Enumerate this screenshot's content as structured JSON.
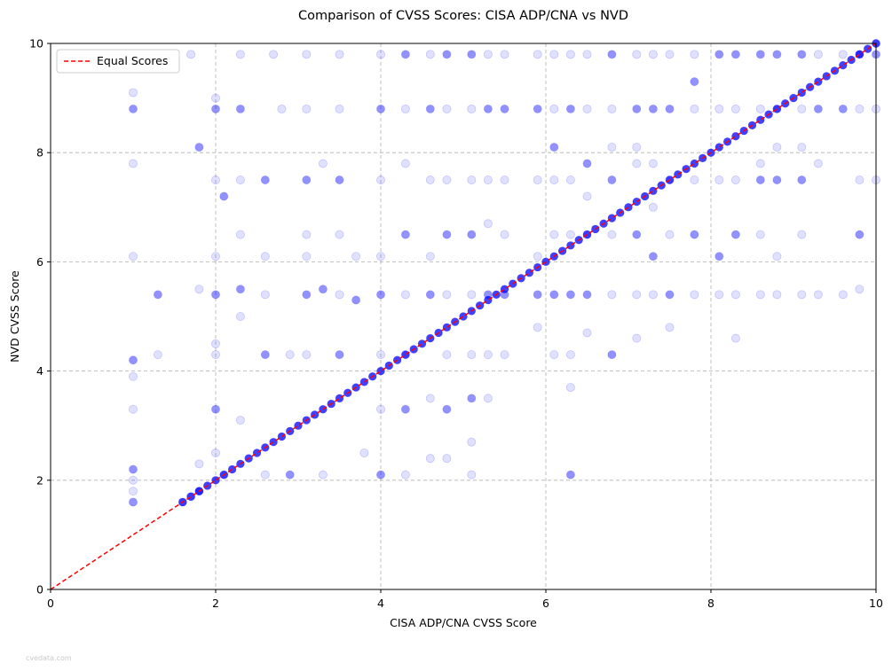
{
  "chart_data": {
    "type": "scatter",
    "title": "Comparison of CVSS Scores: CISA ADP/CNA vs NVD",
    "xlabel": "CISA ADP/CNA CVSS Score",
    "ylabel": "NVD CVSS Score",
    "xlim": [
      0,
      10
    ],
    "ylim": [
      0,
      10
    ],
    "xticks": [
      0,
      2,
      4,
      6,
      8,
      10
    ],
    "yticks": [
      0,
      2,
      4,
      6,
      8,
      10
    ],
    "grid": true,
    "legend_position": "top-left",
    "series": [
      {
        "name": "",
        "color": "#0000ff",
        "opacity": 0.1,
        "note_points": "dense scatter of CVE score pairs",
        "points": [
          [
            1.0,
            1.6
          ],
          [
            1.0,
            1.8
          ],
          [
            1.0,
            2.0
          ],
          [
            1.0,
            2.2
          ],
          [
            1.0,
            3.3
          ],
          [
            1.0,
            3.9
          ],
          [
            1.0,
            4.2
          ],
          [
            1.0,
            6.1
          ],
          [
            1.0,
            7.8
          ],
          [
            1.0,
            8.8
          ],
          [
            1.0,
            9.1
          ],
          [
            1.3,
            4.3
          ],
          [
            1.3,
            5.4
          ],
          [
            1.6,
            1.6
          ],
          [
            1.7,
            1.7
          ],
          [
            1.8,
            1.8
          ],
          [
            1.8,
            2.3
          ],
          [
            1.8,
            5.5
          ],
          [
            1.8,
            8.1
          ],
          [
            1.7,
            9.8
          ],
          [
            2.0,
            2.5
          ],
          [
            2.0,
            3.3
          ],
          [
            2.0,
            4.3
          ],
          [
            2.0,
            4.5
          ],
          [
            2.0,
            5.4
          ],
          [
            2.0,
            6.1
          ],
          [
            2.0,
            7.5
          ],
          [
            2.0,
            8.8
          ],
          [
            2.0,
            9.0
          ],
          [
            2.1,
            2.1
          ],
          [
            2.1,
            7.2
          ],
          [
            2.3,
            3.1
          ],
          [
            2.3,
            5.0
          ],
          [
            2.3,
            5.5
          ],
          [
            2.3,
            6.5
          ],
          [
            2.3,
            7.5
          ],
          [
            2.3,
            8.8
          ],
          [
            2.3,
            9.8
          ],
          [
            2.6,
            2.1
          ],
          [
            2.6,
            4.3
          ],
          [
            2.6,
            5.4
          ],
          [
            2.6,
            6.1
          ],
          [
            2.6,
            7.5
          ],
          [
            2.7,
            9.8
          ],
          [
            2.8,
            8.8
          ],
          [
            2.9,
            2.1
          ],
          [
            2.9,
            4.3
          ],
          [
            3.1,
            4.3
          ],
          [
            3.1,
            5.4
          ],
          [
            3.1,
            6.1
          ],
          [
            3.1,
            6.5
          ],
          [
            3.1,
            7.5
          ],
          [
            3.1,
            8.8
          ],
          [
            3.1,
            9.8
          ],
          [
            3.3,
            5.5
          ],
          [
            3.3,
            7.8
          ],
          [
            3.3,
            2.1
          ],
          [
            3.5,
            4.3
          ],
          [
            3.5,
            5.4
          ],
          [
            3.5,
            6.5
          ],
          [
            3.5,
            7.5
          ],
          [
            3.5,
            8.8
          ],
          [
            3.5,
            9.8
          ],
          [
            3.7,
            5.3
          ],
          [
            3.7,
            6.1
          ],
          [
            3.8,
            2.5
          ],
          [
            4.0,
            2.1
          ],
          [
            4.0,
            3.3
          ],
          [
            4.0,
            4.3
          ],
          [
            4.0,
            5.4
          ],
          [
            4.0,
            6.1
          ],
          [
            4.0,
            7.5
          ],
          [
            4.0,
            8.8
          ],
          [
            4.0,
            9.8
          ],
          [
            4.3,
            2.1
          ],
          [
            4.3,
            3.3
          ],
          [
            4.3,
            4.3
          ],
          [
            4.3,
            5.4
          ],
          [
            4.3,
            6.5
          ],
          [
            4.3,
            7.8
          ],
          [
            4.3,
            8.8
          ],
          [
            4.3,
            9.8
          ],
          [
            4.6,
            2.4
          ],
          [
            4.6,
            3.5
          ],
          [
            4.6,
            5.4
          ],
          [
            4.6,
            6.1
          ],
          [
            4.6,
            7.5
          ],
          [
            4.6,
            8.8
          ],
          [
            4.6,
            9.8
          ],
          [
            4.8,
            2.4
          ],
          [
            4.8,
            3.3
          ],
          [
            4.8,
            4.3
          ],
          [
            4.8,
            5.4
          ],
          [
            4.8,
            6.5
          ],
          [
            4.8,
            7.5
          ],
          [
            4.8,
            8.8
          ],
          [
            4.8,
            9.8
          ],
          [
            5.1,
            2.1
          ],
          [
            5.1,
            2.7
          ],
          [
            5.1,
            3.5
          ],
          [
            5.1,
            4.3
          ],
          [
            5.1,
            5.4
          ],
          [
            5.1,
            6.5
          ],
          [
            5.1,
            7.5
          ],
          [
            5.1,
            8.8
          ],
          [
            5.1,
            9.8
          ],
          [
            5.3,
            3.5
          ],
          [
            5.3,
            4.3
          ],
          [
            5.3,
            5.4
          ],
          [
            5.3,
            6.7
          ],
          [
            5.3,
            7.5
          ],
          [
            5.3,
            8.8
          ],
          [
            5.3,
            9.8
          ],
          [
            5.5,
            4.3
          ],
          [
            5.5,
            5.4
          ],
          [
            5.5,
            6.5
          ],
          [
            5.5,
            7.5
          ],
          [
            5.5,
            8.8
          ],
          [
            5.5,
            9.8
          ],
          [
            5.9,
            4.8
          ],
          [
            5.9,
            5.4
          ],
          [
            5.9,
            6.1
          ],
          [
            5.9,
            7.5
          ],
          [
            5.9,
            8.8
          ],
          [
            5.9,
            9.8
          ],
          [
            6.1,
            4.3
          ],
          [
            6.1,
            5.4
          ],
          [
            6.1,
            6.5
          ],
          [
            6.1,
            7.5
          ],
          [
            6.1,
            8.1
          ],
          [
            6.1,
            8.8
          ],
          [
            6.1,
            9.8
          ],
          [
            6.3,
            2.1
          ],
          [
            6.3,
            3.7
          ],
          [
            6.3,
            4.3
          ],
          [
            6.3,
            5.4
          ],
          [
            6.3,
            6.5
          ],
          [
            6.3,
            7.5
          ],
          [
            6.3,
            8.8
          ],
          [
            6.3,
            9.8
          ],
          [
            6.5,
            4.7
          ],
          [
            6.5,
            5.4
          ],
          [
            6.5,
            6.5
          ],
          [
            6.5,
            7.2
          ],
          [
            6.5,
            7.8
          ],
          [
            6.5,
            8.8
          ],
          [
            6.5,
            9.8
          ],
          [
            6.8,
            4.3
          ],
          [
            6.8,
            5.4
          ],
          [
            6.8,
            6.5
          ],
          [
            6.8,
            7.5
          ],
          [
            6.8,
            8.1
          ],
          [
            6.8,
            8.8
          ],
          [
            6.8,
            9.8
          ],
          [
            7.1,
            4.6
          ],
          [
            7.1,
            5.4
          ],
          [
            7.1,
            6.5
          ],
          [
            7.1,
            7.8
          ],
          [
            7.1,
            8.1
          ],
          [
            7.1,
            8.8
          ],
          [
            7.1,
            9.8
          ],
          [
            7.3,
            5.4
          ],
          [
            7.3,
            6.1
          ],
          [
            7.3,
            7.0
          ],
          [
            7.3,
            7.8
          ],
          [
            7.3,
            8.8
          ],
          [
            7.3,
            9.8
          ],
          [
            7.5,
            4.8
          ],
          [
            7.5,
            5.4
          ],
          [
            7.5,
            6.5
          ],
          [
            7.5,
            7.5
          ],
          [
            7.5,
            8.8
          ],
          [
            7.5,
            9.8
          ],
          [
            7.8,
            5.4
          ],
          [
            7.8,
            6.5
          ],
          [
            7.8,
            7.5
          ],
          [
            7.8,
            8.8
          ],
          [
            7.8,
            9.3
          ],
          [
            7.8,
            9.8
          ],
          [
            8.1,
            5.4
          ],
          [
            8.1,
            6.1
          ],
          [
            8.1,
            7.5
          ],
          [
            8.1,
            8.8
          ],
          [
            8.1,
            9.8
          ],
          [
            8.3,
            4.6
          ],
          [
            8.3,
            5.4
          ],
          [
            8.3,
            6.5
          ],
          [
            8.3,
            7.5
          ],
          [
            8.3,
            8.8
          ],
          [
            8.3,
            9.8
          ],
          [
            8.6,
            5.4
          ],
          [
            8.6,
            6.5
          ],
          [
            8.6,
            7.5
          ],
          [
            8.6,
            7.8
          ],
          [
            8.6,
            8.8
          ],
          [
            8.6,
            9.8
          ],
          [
            8.8,
            5.4
          ],
          [
            8.8,
            6.1
          ],
          [
            8.8,
            7.5
          ],
          [
            8.8,
            8.1
          ],
          [
            8.8,
            8.8
          ],
          [
            8.8,
            9.8
          ],
          [
            9.1,
            5.4
          ],
          [
            9.1,
            6.5
          ],
          [
            9.1,
            7.5
          ],
          [
            9.1,
            8.1
          ],
          [
            9.1,
            8.8
          ],
          [
            9.1,
            9.8
          ],
          [
            9.3,
            5.4
          ],
          [
            9.3,
            7.8
          ],
          [
            9.3,
            8.8
          ],
          [
            9.3,
            9.8
          ],
          [
            9.6,
            5.4
          ],
          [
            9.6,
            8.8
          ],
          [
            9.6,
            9.8
          ],
          [
            9.8,
            5.5
          ],
          [
            9.8,
            6.5
          ],
          [
            9.8,
            7.5
          ],
          [
            9.8,
            8.8
          ],
          [
            9.8,
            9.8
          ],
          [
            10.0,
            7.5
          ],
          [
            10.0,
            8.8
          ],
          [
            10.0,
            9.8
          ],
          [
            10.0,
            10.0
          ]
        ]
      },
      {
        "name": "Equal Scores",
        "type": "line",
        "style": "dashed",
        "color": "#ff0000",
        "x": [
          0,
          10
        ],
        "y": [
          0,
          10
        ]
      }
    ],
    "equal_diagonal_points": [
      1.6,
      1.7,
      1.8,
      1.9,
      2.0,
      2.1,
      2.2,
      2.3,
      2.4,
      2.5,
      2.6,
      2.7,
      2.8,
      2.9,
      3.0,
      3.1,
      3.2,
      3.3,
      3.4,
      3.5,
      3.6,
      3.7,
      3.8,
      3.9,
      4.0,
      4.1,
      4.2,
      4.3,
      4.4,
      4.5,
      4.6,
      4.7,
      4.8,
      4.9,
      5.0,
      5.1,
      5.2,
      5.3,
      5.4,
      5.5,
      5.6,
      5.7,
      5.8,
      5.9,
      6.0,
      6.1,
      6.2,
      6.3,
      6.4,
      6.5,
      6.6,
      6.7,
      6.8,
      6.9,
      7.0,
      7.1,
      7.2,
      7.3,
      7.4,
      7.5,
      7.6,
      7.7,
      7.8,
      7.9,
      8.0,
      8.1,
      8.2,
      8.3,
      8.4,
      8.5,
      8.6,
      8.7,
      8.8,
      8.9,
      9.0,
      9.1,
      9.2,
      9.3,
      9.4,
      9.5,
      9.6,
      9.7,
      9.8,
      9.9,
      10.0
    ]
  },
  "watermark": "cvedata.com"
}
